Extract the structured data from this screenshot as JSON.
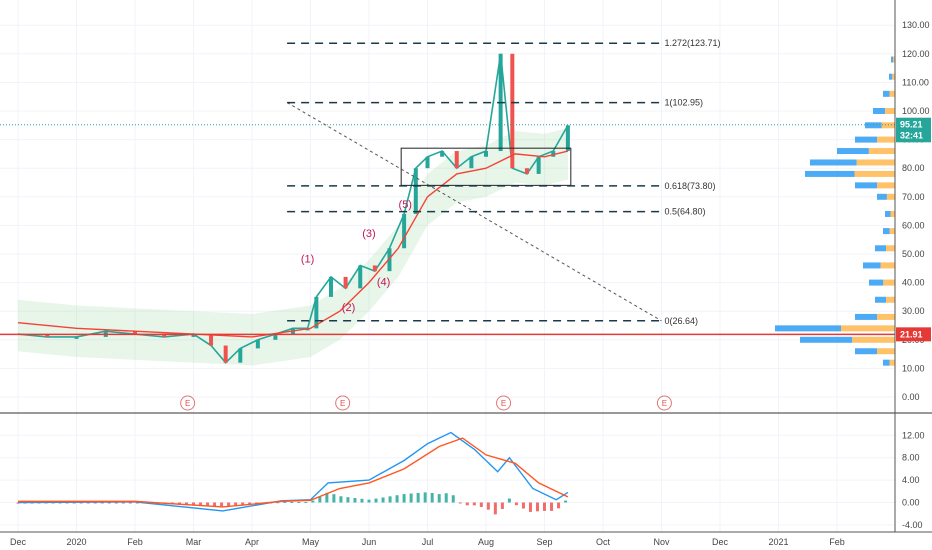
{
  "chart_data": {
    "type": "candlestick",
    "price_axis": {
      "ticks": [
        "130.00",
        "120.00",
        "110.00",
        "100.00",
        "90.00",
        "80.00",
        "70.00",
        "60.00",
        "50.00",
        "40.00",
        "30.00",
        "20.00",
        "10.00",
        "0.00"
      ],
      "values": [
        130,
        120,
        110,
        100,
        90,
        80,
        70,
        60,
        50,
        40,
        30,
        20,
        10,
        0
      ],
      "ylim": [
        -5,
        135
      ]
    },
    "oscillator_axis": {
      "ticks": [
        "12.00",
        "8.00",
        "4.00",
        "0.00",
        "-4.00"
      ],
      "values": [
        12,
        8,
        4,
        0,
        -4
      ],
      "ylim": [
        -5,
        14
      ]
    },
    "time_axis": {
      "labels": [
        "Dec",
        "2020",
        "Feb",
        "Mar",
        "Apr",
        "May",
        "Jun",
        "Jul",
        "Aug",
        "Sep",
        "Oct",
        "Nov",
        "Dec",
        "2021",
        "Feb"
      ]
    },
    "price_tags": [
      {
        "label": "95.21",
        "value": 95.21,
        "color": "#26a69a"
      },
      {
        "label": "32:41",
        "value": 91.5,
        "color": "#26a69a"
      },
      {
        "label": "21.91",
        "value": 21.91,
        "color": "#e53935"
      }
    ],
    "fib_levels": [
      {
        "label": "1.272(123.71)",
        "value": 123.71
      },
      {
        "label": "1(102.95)",
        "value": 102.95
      },
      {
        "label": "0.618(73.80)",
        "value": 73.8
      },
      {
        "label": "0.5(64.80)",
        "value": 64.8
      },
      {
        "label": "0(26.64)",
        "value": 26.64
      }
    ],
    "wave_labels": [
      {
        "label": "(1)",
        "month": 4.95,
        "value": 47
      },
      {
        "label": "(2)",
        "month": 5.65,
        "value": 30
      },
      {
        "label": "(3)",
        "month": 6.0,
        "value": 56
      },
      {
        "label": "(4)",
        "month": 6.25,
        "value": 39
      },
      {
        "label": "(5)",
        "month": 6.62,
        "value": 66
      }
    ],
    "events": [
      {
        "label": "E",
        "month": 2.9
      },
      {
        "label": "E",
        "month": 5.55
      },
      {
        "label": "E",
        "month": 8.3
      },
      {
        "label": "E",
        "month": 11.05
      }
    ],
    "price_series": [
      {
        "month": 0,
        "value": 22
      },
      {
        "month": 0.5,
        "value": 21
      },
      {
        "month": 1.0,
        "value": 21
      },
      {
        "month": 1.5,
        "value": 23
      },
      {
        "month": 2.0,
        "value": 22
      },
      {
        "month": 2.5,
        "value": 21
      },
      {
        "month": 3.0,
        "value": 22
      },
      {
        "month": 3.3,
        "value": 18
      },
      {
        "month": 3.55,
        "value": 12
      },
      {
        "month": 3.8,
        "value": 17
      },
      {
        "month": 4.1,
        "value": 20
      },
      {
        "month": 4.4,
        "value": 22
      },
      {
        "month": 4.7,
        "value": 24
      },
      {
        "month": 4.95,
        "value": 24
      },
      {
        "month": 5.1,
        "value": 35
      },
      {
        "month": 5.35,
        "value": 42
      },
      {
        "month": 5.6,
        "value": 38
      },
      {
        "month": 5.85,
        "value": 46
      },
      {
        "month": 6.1,
        "value": 44
      },
      {
        "month": 6.35,
        "value": 52
      },
      {
        "month": 6.6,
        "value": 64
      },
      {
        "month": 6.8,
        "value": 80
      },
      {
        "month": 7.0,
        "value": 84
      },
      {
        "month": 7.25,
        "value": 86
      },
      {
        "month": 7.5,
        "value": 80
      },
      {
        "month": 7.75,
        "value": 84
      },
      {
        "month": 8.0,
        "value": 86
      },
      {
        "month": 8.25,
        "value": 120
      },
      {
        "month": 8.45,
        "value": 80
      },
      {
        "month": 8.7,
        "value": 78
      },
      {
        "month": 8.9,
        "value": 84
      },
      {
        "month": 9.15,
        "value": 86
      },
      {
        "month": 9.4,
        "value": 95
      }
    ],
    "ema_series": [
      {
        "month": 0,
        "value": 26
      },
      {
        "month": 1.0,
        "value": 24
      },
      {
        "month": 2.0,
        "value": 23
      },
      {
        "month": 3.0,
        "value": 22
      },
      {
        "month": 4.0,
        "value": 21
      },
      {
        "month": 5.0,
        "value": 24
      },
      {
        "month": 5.5,
        "value": 30
      },
      {
        "month": 6.0,
        "value": 40
      },
      {
        "month": 6.5,
        "value": 52
      },
      {
        "month": 7.0,
        "value": 70
      },
      {
        "month": 7.5,
        "value": 78
      },
      {
        "month": 8.0,
        "value": 80
      },
      {
        "month": 8.5,
        "value": 85
      },
      {
        "month": 9.0,
        "value": 84
      },
      {
        "month": 9.4,
        "value": 86
      }
    ],
    "volume_profile": [
      {
        "price": 118,
        "size": 4
      },
      {
        "price": 112,
        "size": 6
      },
      {
        "price": 106,
        "size": 12
      },
      {
        "price": 100,
        "size": 22
      },
      {
        "price": 95,
        "size": 30
      },
      {
        "price": 90,
        "size": 40
      },
      {
        "price": 86,
        "size": 58
      },
      {
        "price": 82,
        "size": 85
      },
      {
        "price": 78,
        "size": 90
      },
      {
        "price": 74,
        "size": 40
      },
      {
        "price": 70,
        "size": 18
      },
      {
        "price": 64,
        "size": 10
      },
      {
        "price": 58,
        "size": 12
      },
      {
        "price": 52,
        "size": 20
      },
      {
        "price": 46,
        "size": 32
      },
      {
        "price": 40,
        "size": 26
      },
      {
        "price": 34,
        "size": 20
      },
      {
        "price": 28,
        "size": 40
      },
      {
        "price": 24,
        "size": 120
      },
      {
        "price": 20,
        "size": 95
      },
      {
        "price": 16,
        "size": 40
      },
      {
        "price": 12,
        "size": 12
      }
    ],
    "macd_series": [
      {
        "month": 0,
        "value": 0
      },
      {
        "month": 2.0,
        "value": 0.1
      },
      {
        "month": 3.5,
        "value": -1.5
      },
      {
        "month": 4.5,
        "value": 0.3
      },
      {
        "month": 5.0,
        "value": 0.5
      },
      {
        "month": 5.3,
        "value": 3.5
      },
      {
        "month": 6.0,
        "value": 4.0
      },
      {
        "month": 6.6,
        "value": 7.5
      },
      {
        "month": 7.0,
        "value": 10.5
      },
      {
        "month": 7.4,
        "value": 12.5
      },
      {
        "month": 7.8,
        "value": 9.5
      },
      {
        "month": 8.2,
        "value": 5.5
      },
      {
        "month": 8.4,
        "value": 8.0
      },
      {
        "month": 8.8,
        "value": 2.5
      },
      {
        "month": 9.2,
        "value": 0.5
      },
      {
        "month": 9.4,
        "value": 1.8
      }
    ],
    "signal_series": [
      {
        "month": 0,
        "value": 0.2
      },
      {
        "month": 2.0,
        "value": 0.2
      },
      {
        "month": 3.5,
        "value": -0.8
      },
      {
        "month": 4.5,
        "value": 0.2
      },
      {
        "month": 5.0,
        "value": 0.4
      },
      {
        "month": 5.5,
        "value": 2.5
      },
      {
        "month": 6.0,
        "value": 3.5
      },
      {
        "month": 6.6,
        "value": 6.0
      },
      {
        "month": 7.2,
        "value": 10.0
      },
      {
        "month": 7.6,
        "value": 11.5
      },
      {
        "month": 8.0,
        "value": 8.5
      },
      {
        "month": 8.5,
        "value": 7.0
      },
      {
        "month": 8.9,
        "value": 3.5
      },
      {
        "month": 9.4,
        "value": 1.0
      }
    ]
  }
}
